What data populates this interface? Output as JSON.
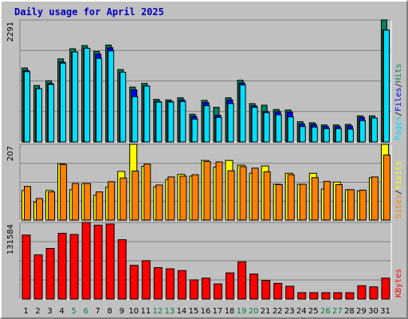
{
  "title": "Daily usage for April 2025",
  "colors": {
    "hits": "#00805c",
    "files": "#0000ff",
    "pages": "#00e0ff",
    "visits": "#ffff00",
    "sites": "#ff8000",
    "kbytes": "#ff0000",
    "weekend_day": "#008040",
    "weekday": "#000000"
  },
  "panels": {
    "top": {
      "max_label": "2291",
      "legend": [
        "Pages",
        "/",
        "Files",
        "/",
        "Hits"
      ]
    },
    "mid": {
      "max_label": "207",
      "legend": [
        "Sites",
        "/",
        "Visits"
      ]
    },
    "bot": {
      "max_label": "131584",
      "legend": [
        "KBytes"
      ]
    }
  },
  "chart_data": {
    "type": "bar",
    "title": "Daily usage for April 2025",
    "categories": [
      "1",
      "2",
      "3",
      "4",
      "5",
      "6",
      "7",
      "8",
      "9",
      "10",
      "11",
      "12",
      "13",
      "14",
      "15",
      "16",
      "17",
      "18",
      "19",
      "20",
      "21",
      "22",
      "23",
      "24",
      "25",
      "26",
      "27",
      "28",
      "29",
      "30",
      "31"
    ],
    "weekend_days": [
      "5",
      "6",
      "12",
      "13",
      "19",
      "20",
      "26",
      "27"
    ],
    "series": [
      {
        "name": "Hits",
        "panel": "top",
        "values": [
          1390,
          1060,
          1150,
          1560,
          1750,
          1810,
          1700,
          1820,
          1360,
          1030,
          1100,
          800,
          790,
          830,
          520,
          780,
          650,
          830,
          1160,
          720,
          690,
          610,
          600,
          380,
          360,
          320,
          320,
          330,
          490,
          490,
          2291
        ]
      },
      {
        "name": "Files",
        "panel": "top",
        "values": [
          1340,
          1000,
          1100,
          1500,
          1690,
          1760,
          1650,
          1770,
          1310,
          980,
          1050,
          760,
          760,
          790,
          480,
          740,
          500,
          790,
          1110,
          680,
          570,
          570,
          560,
          340,
          330,
          290,
          290,
          300,
          460,
          450,
          2100
        ]
      },
      {
        "name": "Pages",
        "panel": "top",
        "values": [
          1320,
          1000,
          1080,
          1480,
          1690,
          1760,
          1570,
          1710,
          1310,
          850,
          1050,
          750,
          750,
          760,
          430,
          680,
          460,
          720,
          1070,
          650,
          550,
          510,
          470,
          290,
          280,
          250,
          250,
          240,
          400,
          450,
          2100
        ]
      },
      {
        "name": "Visits",
        "panel": "mid",
        "values": [
          81,
          49,
          81,
          154,
          83,
          100,
          68,
          90,
          133,
          207,
          147,
          91,
          111,
          125,
          120,
          163,
          145,
          163,
          150,
          128,
          148,
          98,
          128,
          98,
          128,
          85,
          104,
          83,
          80,
          116,
          207
        ]
      },
      {
        "name": "Sites",
        "panel": "mid",
        "values": [
          92,
          59,
          77,
          152,
          100,
          100,
          77,
          105,
          115,
          134,
          153,
          96,
          118,
          120,
          124,
          160,
          159,
          135,
          146,
          142,
          132,
          97,
          124,
          98,
          116,
          106,
          97,
          83,
          82,
          118,
          178
        ]
      },
      {
        "name": "KBytes",
        "panel": "bot",
        "values": [
          110000,
          76000,
          87000,
          113000,
          111000,
          132000,
          127000,
          129000,
          102000,
          58000,
          66000,
          54000,
          52000,
          49000,
          33000,
          36000,
          26000,
          45000,
          64000,
          43000,
          32000,
          27000,
          22000,
          11000,
          11000,
          11000,
          11000,
          11000,
          23000,
          21000,
          36000
        ]
      }
    ],
    "ylim": {
      "top": [
        0,
        2291
      ],
      "mid": [
        0,
        207
      ],
      "bot": [
        0,
        131584
      ]
    },
    "grid": true,
    "legend": "right"
  }
}
